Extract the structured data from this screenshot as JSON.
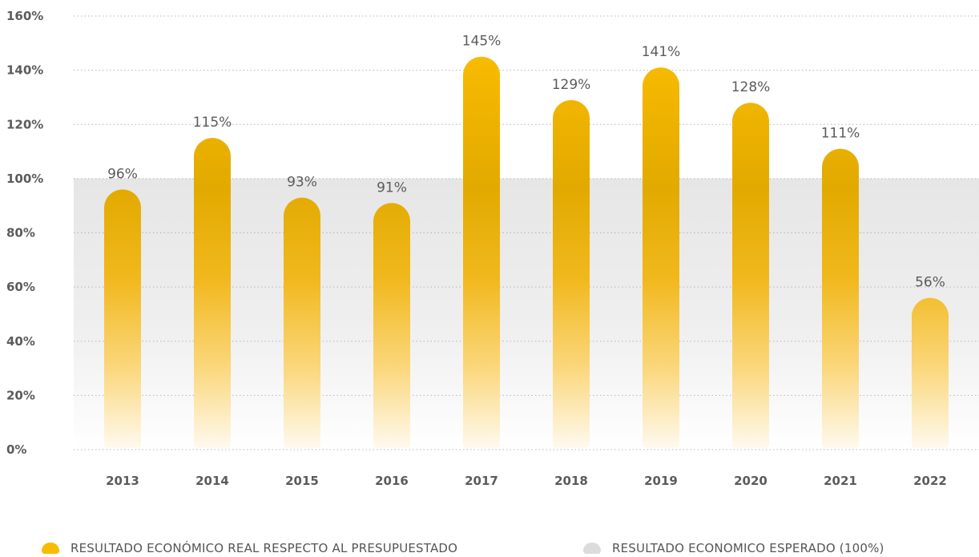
{
  "chart_data": {
    "type": "bar",
    "categories": [
      "2013",
      "2014",
      "2015",
      "2016",
      "2017",
      "2018",
      "2019",
      "2020",
      "2021",
      "2022"
    ],
    "series": [
      {
        "name": "RESULTADO ECONÓMICO REAL  RESPECTO AL PRESUPUESTADO",
        "values": [
          96,
          115,
          93,
          91,
          145,
          129,
          141,
          128,
          111,
          56
        ]
      }
    ],
    "data_labels": [
      "96%",
      "115%",
      "93%",
      "91%",
      "145%",
      "129%",
      "141%",
      "128%",
      "111%",
      "56%"
    ],
    "y_ticks": [
      "0%",
      "20%",
      "40%",
      "60%",
      "80%",
      "100%",
      "120%",
      "140%",
      "160%"
    ],
    "ylim": [
      0,
      160
    ],
    "reference_band": {
      "name": "RESULTADO ECONOMICO ESPERADO (100%)",
      "from": 0,
      "to": 100
    },
    "grid": true,
    "legend_position": "bottom",
    "colors": {
      "bar": "#f9bb00",
      "bar_mid": "#e8ad00",
      "band": "#e6e6e6",
      "grid": "#b5b5b5",
      "text": "#5b5b5b"
    }
  },
  "legend": {
    "real_label": "RESULTADO ECONÓMICO REAL  RESPECTO AL PRESUPUESTADO",
    "expected_label": "RESULTADO ECONOMICO ESPERADO (100%)"
  }
}
